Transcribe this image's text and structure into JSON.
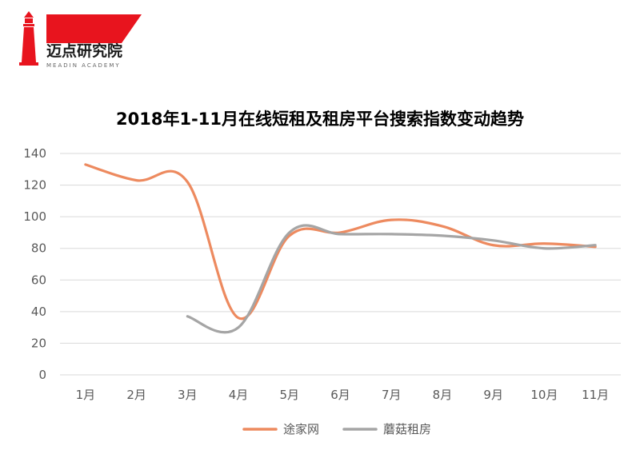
{
  "logo": {
    "name": "迈点研究院",
    "tagline": "MEADIN ACADEMY",
    "color": "#e8141e"
  },
  "chart_data": {
    "type": "line",
    "title": "2018年1-11月在线短租及租房平台搜索指数变动趋势",
    "categories": [
      "1月",
      "2月",
      "3月",
      "4月",
      "5月",
      "6月",
      "7月",
      "8月",
      "9月",
      "10月",
      "11月"
    ],
    "ylim": [
      0,
      140
    ],
    "yticks": [
      0,
      20,
      40,
      60,
      80,
      100,
      120,
      140
    ],
    "grid": true,
    "legend_position": "bottom",
    "series": [
      {
        "name": "途家网",
        "color": "#ed8a5f",
        "values": [
          133,
          123,
          122,
          36,
          88,
          90,
          98,
          94,
          82,
          83,
          81
        ]
      },
      {
        "name": "蘑菇租房",
        "color": "#a5a5a5",
        "values": [
          null,
          null,
          37,
          30,
          90,
          89,
          89,
          88,
          85,
          80,
          82
        ]
      }
    ]
  }
}
